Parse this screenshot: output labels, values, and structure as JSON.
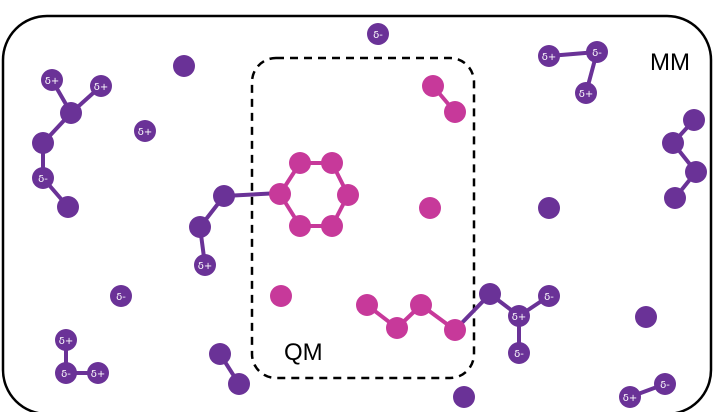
{
  "labels": {
    "mm": "MM",
    "qm": "QM"
  },
  "charges": {
    "plus": "δ+",
    "minus": "δ-"
  },
  "colors": {
    "mm_atom": "#6a3297",
    "qm_atom": "#c7399a",
    "outline": "#000000",
    "background": "#ffffff"
  }
}
